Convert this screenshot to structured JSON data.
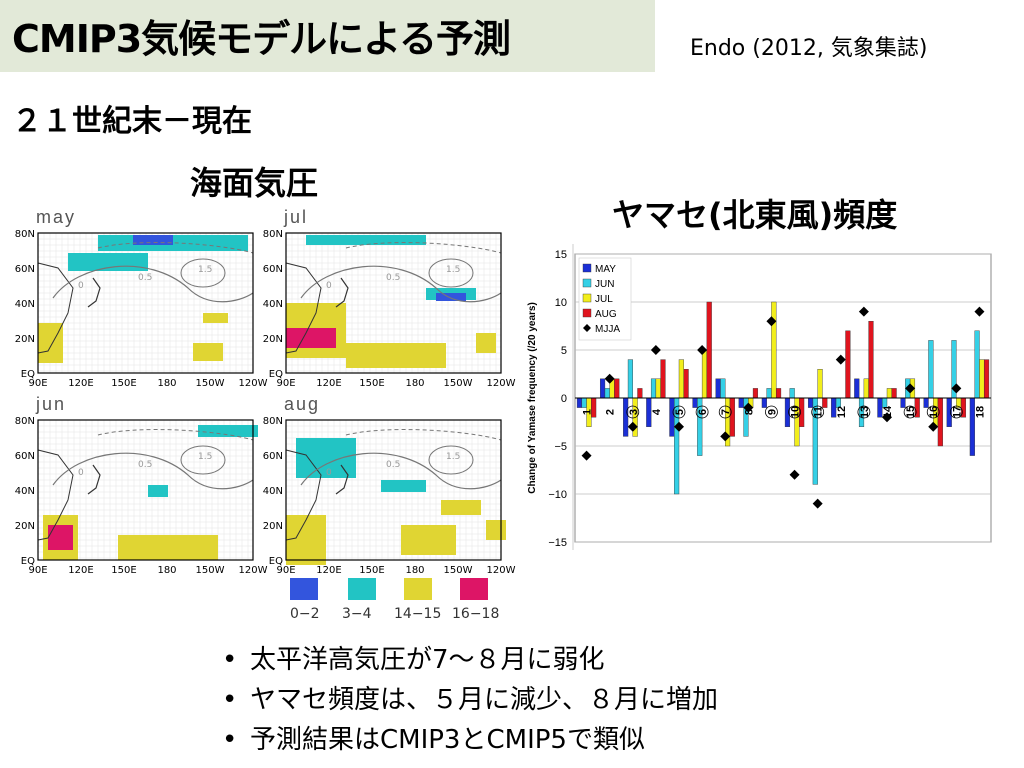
{
  "slide": {
    "title": "CMIP3気候モデルによる予測",
    "citation": "Endo (2012, 気象集誌)",
    "subtitle": "２１世紀末－現在",
    "slp_title": "海面気圧",
    "chart_title": "ヤマセ(北東風)頻度"
  },
  "maps": {
    "panels": [
      {
        "label": "may"
      },
      {
        "label": "jul"
      },
      {
        "label": "jun"
      },
      {
        "label": "aug"
      }
    ],
    "lat_labels": [
      "80N",
      "60N",
      "40N",
      "20N",
      "EQ"
    ],
    "lon_labels": [
      "90E",
      "120E",
      "150E",
      "180",
      "150W",
      "120W"
    ],
    "contour_labels": [
      "0",
      "0.5",
      "1.5"
    ],
    "legend": [
      {
        "label": "0−2",
        "color": "#3355dd"
      },
      {
        "label": "3−4",
        "color": "#22c4c4"
      },
      {
        "label": "14−15",
        "color": "#e0d533"
      },
      {
        "label": "16−18",
        "color": "#dd1566"
      }
    ]
  },
  "chart_data": {
    "type": "bar",
    "ylabel": "Change of Yamase frequency (/20 years)",
    "ylim": [
      -15,
      15
    ],
    "yticks": [
      15,
      10,
      5,
      0,
      -5,
      -10,
      -15
    ],
    "legend_position": "top-left",
    "categories": [
      "1",
      "2",
      "3",
      "4",
      "5",
      "6",
      "7",
      "8",
      "9",
      "10",
      "11",
      "12",
      "13",
      "14",
      "15",
      "16",
      "17",
      "18"
    ],
    "circled_categories": [
      "3",
      "5",
      "6",
      "7",
      "9",
      "10",
      "11",
      "13",
      "15",
      "16",
      "17"
    ],
    "series": [
      {
        "name": "MAY",
        "color": "#1b2fd6",
        "values": [
          -1,
          2,
          -4,
          -3,
          -4,
          -1,
          2,
          -1,
          -1,
          -3,
          -1,
          -2,
          2,
          -2,
          -1,
          -1,
          -3,
          -6
        ]
      },
      {
        "name": "JUN",
        "color": "#35d0e6",
        "values": [
          -1,
          1,
          4,
          2,
          -10,
          -6,
          2,
          -4,
          1,
          1,
          -9,
          -1,
          -3,
          -1,
          2,
          6,
          6,
          7
        ]
      },
      {
        "name": "JUL",
        "color": "#f2ee1c",
        "values": [
          -3,
          2,
          -4,
          2,
          4,
          5,
          -5,
          -1,
          10,
          -5,
          3,
          0,
          2,
          1,
          2,
          -3,
          -1,
          4
        ]
      },
      {
        "name": "AUG",
        "color": "#e0141e",
        "values": [
          -2,
          2,
          1,
          4,
          3,
          10,
          -4,
          1,
          1,
          -3,
          -1,
          7,
          8,
          1,
          -2,
          -5,
          -2,
          4
        ]
      },
      {
        "name": "MJJA",
        "color": "#000000",
        "marker": "diamond",
        "values": [
          -6,
          2,
          -3,
          5,
          -3,
          5,
          -4,
          -1,
          8,
          -8,
          -11,
          4,
          9,
          -2,
          1,
          -3,
          1,
          9
        ]
      }
    ]
  }
}
